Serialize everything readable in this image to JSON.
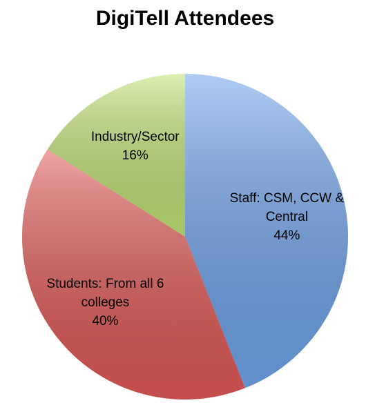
{
  "chart_data": {
    "type": "pie",
    "title": "DigiTell Attendees",
    "categories": [
      "Staff: CSM, CCW & Central",
      "Students: From all 6 colleges",
      "Industry/Sector"
    ],
    "values": [
      44,
      40,
      16
    ],
    "value_labels": [
      "44%",
      "40%",
      "16%"
    ],
    "colors": [
      "#6fa3ea",
      "#e05a57",
      "#bfe276"
    ]
  }
}
